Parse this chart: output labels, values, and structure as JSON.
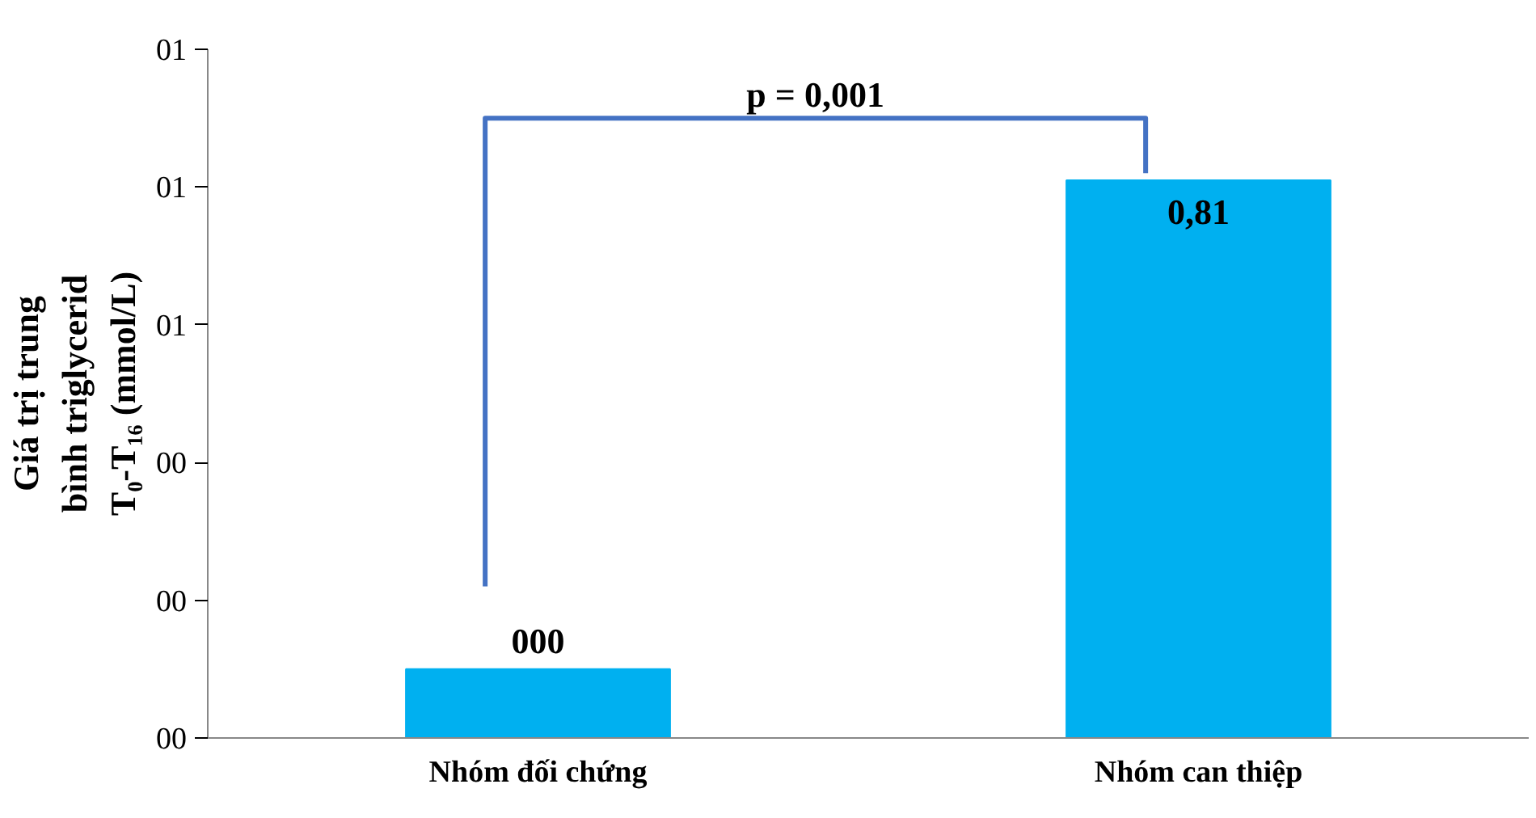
{
  "chart_data": {
    "type": "bar",
    "categories": [
      "Nhóm đối chứng",
      "Nhóm can thiệp"
    ],
    "values": [
      0.1,
      0.81
    ],
    "value_labels": [
      "000",
      "0,81"
    ],
    "color": "#00b0f0",
    "ylabel": "Giá trị trung bình triglycerid T₀-T₁₆ (mmol/L)",
    "ylim": [
      0,
      1.0
    ],
    "yticks": [
      {
        "value": 0,
        "label": "00"
      },
      {
        "value": 0.2,
        "label": "00"
      },
      {
        "value": 0.4,
        "label": "00"
      },
      {
        "value": 0.6,
        "label": "01"
      },
      {
        "value": 0.8,
        "label": "01"
      },
      {
        "value": 1.0,
        "label": "01"
      }
    ],
    "annotations": [
      "p = 0,001"
    ],
    "grid": false
  }
}
